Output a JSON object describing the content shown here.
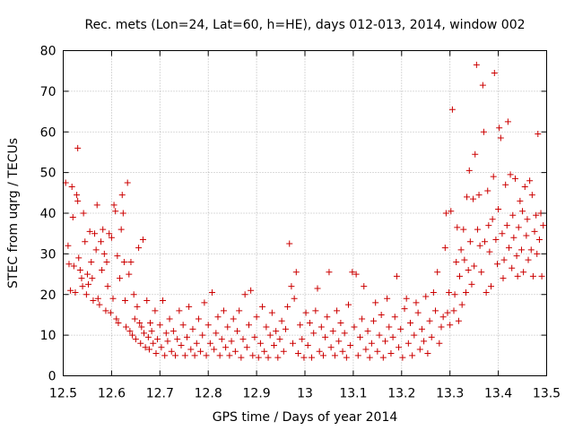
{
  "chart_data": {
    "type": "scatter",
    "title": "Rec. mets (Lon=24, Lat=60, h=HE), days 012-013, 2014, window 002",
    "xlabel": "GPS time / Days of year 2014",
    "ylabel": "STEC from uqrg / TECUs",
    "xlim": [
      12.5,
      13.5
    ],
    "ylim": [
      0,
      80
    ],
    "xticks": [
      "12.5",
      "12.6",
      "12.7",
      "12.8",
      "12.9",
      "13",
      "13.1",
      "13.2",
      "13.3",
      "13.4",
      "13.5"
    ],
    "yticks": [
      "0",
      "10",
      "20",
      "30",
      "40",
      "50",
      "60",
      "70",
      "80"
    ],
    "grid": true,
    "marker": "plus",
    "color": "#cc0000",
    "series": [
      {
        "points": [
          [
            12.505,
            47.5
          ],
          [
            12.51,
            32.0
          ],
          [
            12.512,
            27.5
          ],
          [
            12.515,
            21.0
          ],
          [
            12.518,
            46.5
          ],
          [
            12.52,
            39.0
          ],
          [
            12.522,
            27.0
          ],
          [
            12.525,
            20.5
          ],
          [
            12.528,
            44.5
          ],
          [
            12.53,
            43.0
          ],
          [
            12.53,
            56.0
          ],
          [
            12.532,
            29.0
          ],
          [
            12.535,
            26.0
          ],
          [
            12.538,
            24.0
          ],
          [
            12.54,
            22.0
          ],
          [
            12.542,
            40.0
          ],
          [
            12.545,
            33.0
          ],
          [
            12.548,
            20.0
          ],
          [
            12.55,
            25.0
          ],
          [
            12.552,
            22.5
          ],
          [
            12.555,
            35.5
          ],
          [
            12.558,
            28.0
          ],
          [
            12.56,
            24.0
          ],
          [
            12.562,
            18.5
          ],
          [
            12.565,
            35.0
          ],
          [
            12.568,
            31.0
          ],
          [
            12.57,
            42.0
          ],
          [
            12.572,
            19.0
          ],
          [
            12.575,
            17.5
          ],
          [
            12.578,
            33.0
          ],
          [
            12.58,
            26.0
          ],
          [
            12.582,
            36.0
          ],
          [
            12.585,
            30.0
          ],
          [
            12.588,
            16.0
          ],
          [
            12.59,
            28.0
          ],
          [
            12.592,
            22.0
          ],
          [
            12.595,
            35.0
          ],
          [
            12.598,
            15.5
          ],
          [
            12.6,
            34.0
          ],
          [
            12.603,
            19.0
          ],
          [
            12.605,
            42.0
          ],
          [
            12.608,
            40.5
          ],
          [
            12.61,
            14.0
          ],
          [
            12.612,
            29.5
          ],
          [
            12.614,
            13.0
          ],
          [
            12.617,
            24.0
          ],
          [
            12.62,
            36.0
          ],
          [
            12.622,
            44.5
          ],
          [
            12.624,
            40.0
          ],
          [
            12.626,
            28.0
          ],
          [
            12.628,
            18.5
          ],
          [
            12.63,
            12.0
          ],
          [
            12.633,
            47.5
          ],
          [
            12.636,
            25.0
          ],
          [
            12.638,
            11.0
          ],
          [
            12.64,
            28.0
          ],
          [
            12.643,
            10.0
          ],
          [
            12.646,
            20.0
          ],
          [
            12.648,
            14.0
          ],
          [
            12.65,
            9.0
          ],
          [
            12.653,
            17.0
          ],
          [
            12.656,
            31.5
          ],
          [
            12.658,
            13.0
          ],
          [
            12.66,
            8.0
          ],
          [
            12.662,
            12.0
          ],
          [
            12.665,
            33.5
          ],
          [
            12.667,
            10.5
          ],
          [
            12.67,
            7.0
          ],
          [
            12.673,
            18.5
          ],
          [
            12.676,
            9.5
          ],
          [
            12.678,
            6.5
          ],
          [
            12.68,
            13.0
          ],
          [
            12.683,
            11.0
          ],
          [
            12.686,
            8.0
          ],
          [
            12.69,
            16.0
          ],
          [
            12.692,
            5.5
          ],
          [
            12.695,
            9.0
          ],
          [
            12.7,
            12.5
          ],
          [
            12.703,
            7.0
          ],
          [
            12.706,
            18.5
          ],
          [
            12.71,
            5.0
          ],
          [
            12.713,
            10.5
          ],
          [
            12.716,
            8.5
          ],
          [
            12.72,
            14.0
          ],
          [
            12.724,
            6.0
          ],
          [
            12.728,
            11.0
          ],
          [
            12.732,
            5.0
          ],
          [
            12.736,
            9.0
          ],
          [
            12.74,
            16.0
          ],
          [
            12.744,
            7.5
          ],
          [
            12.748,
            12.5
          ],
          [
            12.752,
            5.0
          ],
          [
            12.756,
            9.5
          ],
          [
            12.76,
            17.0
          ],
          [
            12.764,
            6.5
          ],
          [
            12.768,
            11.5
          ],
          [
            12.772,
            5.0
          ],
          [
            12.776,
            8.0
          ],
          [
            12.78,
            14.0
          ],
          [
            12.784,
            6.0
          ],
          [
            12.788,
            10.0
          ],
          [
            12.792,
            18.0
          ],
          [
            12.796,
            5.0
          ],
          [
            12.8,
            12.5
          ],
          [
            12.804,
            8.0
          ],
          [
            12.808,
            20.5
          ],
          [
            12.812,
            6.5
          ],
          [
            12.816,
            10.5
          ],
          [
            12.82,
            14.5
          ],
          [
            12.824,
            5.0
          ],
          [
            12.828,
            9.0
          ],
          [
            12.832,
            16.0
          ],
          [
            12.836,
            7.0
          ],
          [
            12.84,
            12.0
          ],
          [
            12.844,
            5.0
          ],
          [
            12.848,
            8.5
          ],
          [
            12.852,
            14.0
          ],
          [
            12.856,
            6.0
          ],
          [
            12.86,
            11.0
          ],
          [
            12.864,
            16.0
          ],
          [
            12.868,
            4.5
          ],
          [
            12.872,
            9.0
          ],
          [
            12.876,
            20.0
          ],
          [
            12.88,
            7.0
          ],
          [
            12.884,
            12.5
          ],
          [
            12.888,
            21.0
          ],
          [
            12.892,
            5.0
          ],
          [
            12.896,
            9.5
          ],
          [
            12.9,
            14.5
          ],
          [
            12.904,
            4.5
          ],
          [
            12.908,
            8.0
          ],
          [
            12.912,
            17.0
          ],
          [
            12.916,
            6.0
          ],
          [
            12.92,
            12.0
          ],
          [
            12.924,
            4.5
          ],
          [
            12.928,
            10.0
          ],
          [
            12.932,
            15.5
          ],
          [
            12.936,
            7.5
          ],
          [
            12.94,
            11.0
          ],
          [
            12.944,
            4.5
          ],
          [
            12.948,
            9.0
          ],
          [
            12.952,
            13.5
          ],
          [
            12.956,
            6.0
          ],
          [
            12.96,
            11.5
          ],
          [
            12.964,
            17.0
          ],
          [
            12.968,
            32.5
          ],
          [
            12.972,
            22.0
          ],
          [
            12.975,
            8.0
          ],
          [
            12.978,
            19.0
          ],
          [
            12.982,
            25.5
          ],
          [
            12.986,
            5.5
          ],
          [
            12.99,
            12.5
          ],
          [
            12.994,
            9.0
          ],
          [
            12.998,
            4.5
          ],
          [
            13.002,
            15.5
          ],
          [
            13.006,
            7.5
          ],
          [
            13.01,
            13.0
          ],
          [
            13.014,
            4.5
          ],
          [
            13.018,
            10.5
          ],
          [
            13.022,
            16.0
          ],
          [
            13.026,
            21.5
          ],
          [
            13.03,
            6.0
          ],
          [
            13.034,
            12.0
          ],
          [
            13.038,
            5.0
          ],
          [
            13.042,
            9.5
          ],
          [
            13.046,
            14.5
          ],
          [
            13.05,
            25.5
          ],
          [
            13.054,
            7.0
          ],
          [
            13.058,
            11.0
          ],
          [
            13.062,
            5.0
          ],
          [
            13.066,
            16.0
          ],
          [
            13.07,
            8.5
          ],
          [
            13.074,
            13.0
          ],
          [
            13.078,
            6.0
          ],
          [
            13.082,
            10.5
          ],
          [
            13.086,
            4.5
          ],
          [
            13.09,
            17.5
          ],
          [
            13.094,
            7.5
          ],
          [
            13.098,
            25.5
          ],
          [
            13.102,
            12.0
          ],
          [
            13.106,
            25.0
          ],
          [
            13.11,
            5.0
          ],
          [
            13.114,
            9.5
          ],
          [
            13.118,
            14.0
          ],
          [
            13.122,
            22.0
          ],
          [
            13.126,
            6.5
          ],
          [
            13.13,
            11.0
          ],
          [
            13.134,
            4.5
          ],
          [
            13.138,
            8.0
          ],
          [
            13.142,
            13.5
          ],
          [
            13.146,
            18.0
          ],
          [
            13.15,
            6.0
          ],
          [
            13.154,
            10.0
          ],
          [
            13.158,
            15.0
          ],
          [
            13.162,
            4.5
          ],
          [
            13.166,
            8.5
          ],
          [
            13.17,
            19.0
          ],
          [
            13.174,
            12.0
          ],
          [
            13.178,
            5.5
          ],
          [
            13.182,
            9.5
          ],
          [
            13.186,
            14.5
          ],
          [
            13.19,
            24.5
          ],
          [
            13.194,
            7.0
          ],
          [
            13.198,
            11.5
          ],
          [
            13.202,
            4.5
          ],
          [
            13.206,
            16.5
          ],
          [
            13.21,
            19.0
          ],
          [
            13.214,
            8.0
          ],
          [
            13.218,
            13.0
          ],
          [
            13.222,
            5.0
          ],
          [
            13.226,
            10.0
          ],
          [
            13.23,
            18.0
          ],
          [
            13.234,
            15.5
          ],
          [
            13.238,
            6.5
          ],
          [
            13.242,
            11.5
          ],
          [
            13.246,
            8.5
          ],
          [
            13.25,
            19.5
          ],
          [
            13.254,
            5.5
          ],
          [
            13.258,
            13.5
          ],
          [
            13.262,
            9.5
          ],
          [
            13.266,
            20.5
          ],
          [
            13.27,
            16.0
          ],
          [
            13.274,
            25.5
          ],
          [
            13.278,
            8.0
          ],
          [
            13.282,
            12.0
          ],
          [
            13.286,
            14.5
          ],
          [
            13.29,
            31.5
          ],
          [
            13.292,
            40.0
          ],
          [
            13.295,
            15.5
          ],
          [
            13.298,
            20.5
          ],
          [
            13.3,
            12.5
          ],
          [
            13.302,
            40.5
          ],
          [
            13.305,
            65.5
          ],
          [
            13.308,
            16.0
          ],
          [
            13.31,
            20.0
          ],
          [
            13.313,
            28.0
          ],
          [
            13.315,
            36.5
          ],
          [
            13.318,
            13.5
          ],
          [
            13.32,
            24.5
          ],
          [
            13.323,
            31.0
          ],
          [
            13.325,
            17.5
          ],
          [
            13.328,
            36.0
          ],
          [
            13.33,
            28.5
          ],
          [
            13.333,
            20.5
          ],
          [
            13.335,
            44.0
          ],
          [
            13.338,
            26.0
          ],
          [
            13.34,
            50.5
          ],
          [
            13.342,
            33.0
          ],
          [
            13.345,
            22.5
          ],
          [
            13.348,
            43.5
          ],
          [
            13.35,
            27.0
          ],
          [
            13.352,
            54.5
          ],
          [
            13.355,
            76.5
          ],
          [
            13.357,
            36.0
          ],
          [
            13.36,
            44.5
          ],
          [
            13.362,
            32.0
          ],
          [
            13.365,
            25.5
          ],
          [
            13.368,
            71.5
          ],
          [
            13.37,
            60.0
          ],
          [
            13.372,
            33.0
          ],
          [
            13.375,
            20.5
          ],
          [
            13.378,
            45.5
          ],
          [
            13.38,
            37.0
          ],
          [
            13.382,
            30.5
          ],
          [
            13.385,
            22.0
          ],
          [
            13.388,
            38.5
          ],
          [
            13.39,
            49.0
          ],
          [
            13.392,
            74.5
          ],
          [
            13.395,
            33.5
          ],
          [
            13.398,
            27.5
          ],
          [
            13.4,
            41.0
          ],
          [
            13.402,
            61.0
          ],
          [
            13.405,
            58.5
          ],
          [
            13.408,
            35.0
          ],
          [
            13.41,
            24.0
          ],
          [
            13.412,
            28.5
          ],
          [
            13.415,
            47.0
          ],
          [
            13.418,
            37.0
          ],
          [
            13.42,
            62.5
          ],
          [
            13.422,
            31.5
          ],
          [
            13.425,
            49.5
          ],
          [
            13.428,
            26.5
          ],
          [
            13.43,
            39.5
          ],
          [
            13.432,
            34.0
          ],
          [
            13.435,
            48.5
          ],
          [
            13.438,
            29.5
          ],
          [
            13.44,
            24.5
          ],
          [
            13.442,
            36.5
          ],
          [
            13.445,
            43.0
          ],
          [
            13.448,
            31.0
          ],
          [
            13.45,
            40.5
          ],
          [
            13.452,
            25.5
          ],
          [
            13.455,
            46.5
          ],
          [
            13.458,
            34.5
          ],
          [
            13.46,
            38.5
          ],
          [
            13.462,
            28.5
          ],
          [
            13.465,
            48.0
          ],
          [
            13.468,
            31.0
          ],
          [
            13.47,
            44.5
          ],
          [
            13.472,
            24.5
          ],
          [
            13.475,
            35.5
          ],
          [
            13.478,
            39.5
          ],
          [
            13.48,
            30.0
          ],
          [
            13.482,
            59.5
          ],
          [
            13.485,
            33.5
          ],
          [
            13.488,
            40.0
          ],
          [
            13.49,
            24.5
          ],
          [
            13.493,
            37.0
          ]
        ]
      }
    ]
  }
}
